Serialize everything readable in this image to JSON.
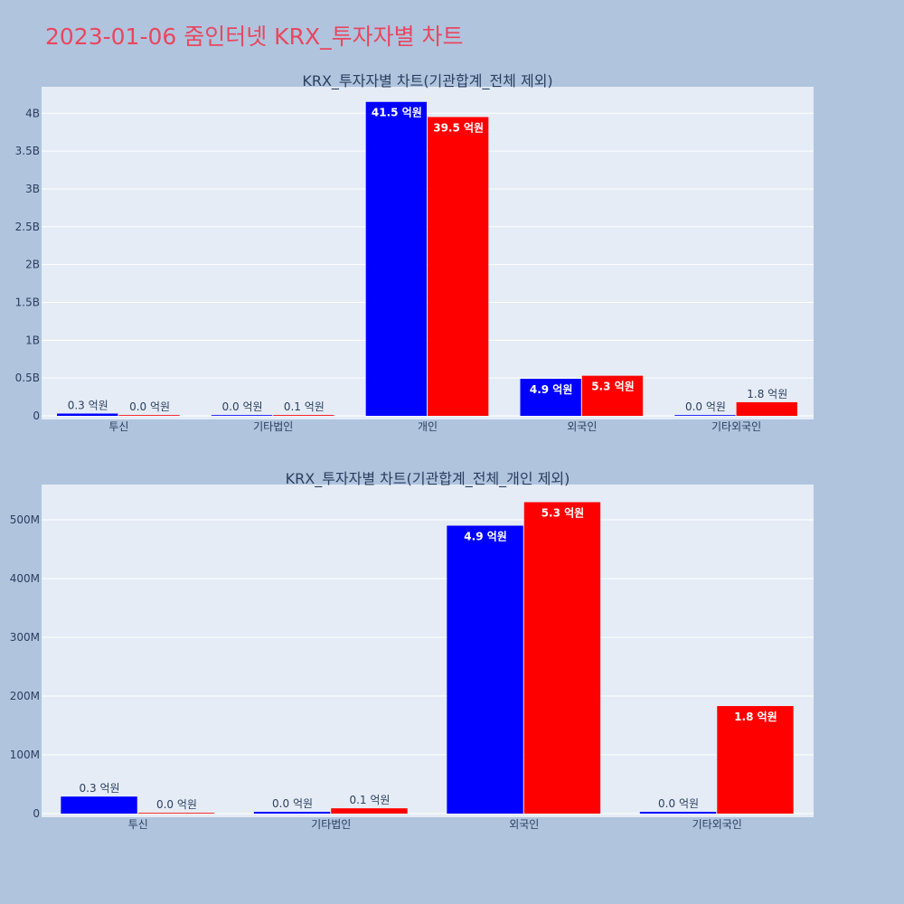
{
  "title": "2023-01-06 줌인터넷 KRX_투자자별 차트",
  "colors": {
    "page_bg": "#b0c4de",
    "plot_bg": "#e5ecf6",
    "title": "#e8475f",
    "text": "#2a3f5f",
    "buy": "#0000ff",
    "sell": "#ff0000"
  },
  "chart_data": [
    {
      "type": "bar",
      "title": "KRX_투자자별 차트(기관합계_전체 제외)",
      "categories": [
        "투신",
        "기타법인",
        "개인",
        "외국인",
        "기타외국인"
      ],
      "series": [
        {
          "color": "#0000ff",
          "values": [
            30000000,
            1000000,
            4150000000,
            490000000,
            2000000
          ],
          "labels": [
            "0.3 억원",
            "0.0 억원",
            "41.5 억원",
            "4.9 억원",
            "0.0 억원"
          ]
        },
        {
          "color": "#ff0000",
          "values": [
            0,
            10000000,
            3950000000,
            530000000,
            180000000
          ],
          "labels": [
            "0.0 억원",
            "0.1 억원",
            "39.5 억원",
            "5.3 억원",
            "1.8 억원"
          ]
        }
      ],
      "ylim": [
        0,
        4350000000
      ],
      "yticks": [
        0,
        500000000,
        1000000000,
        1500000000,
        2000000000,
        2500000000,
        3000000000,
        3500000000,
        4000000000
      ],
      "ytick_labels": [
        "0",
        "0.5B",
        "1B",
        "1.5B",
        "2B",
        "2.5B",
        "3B",
        "3.5B",
        "4B"
      ],
      "grid": true
    },
    {
      "type": "bar",
      "title": "KRX_투자자별 차트(기관합계_전체_개인 제외)",
      "categories": [
        "투신",
        "기타법인",
        "외국인",
        "기타외국인"
      ],
      "series": [
        {
          "color": "#0000ff",
          "values": [
            29000000,
            3000000,
            490000000,
            3000000
          ],
          "labels": [
            "0.3 억원",
            "0.0 억원",
            "4.9 억원",
            "0.0 억원"
          ]
        },
        {
          "color": "#ff0000",
          "values": [
            0,
            9000000,
            530000000,
            183000000
          ],
          "labels": [
            "0.0 억원",
            "0.1 억원",
            "5.3 억원",
            "1.8 억원"
          ]
        }
      ],
      "ylim": [
        0,
        560000000
      ],
      "yticks": [
        0,
        100000000,
        200000000,
        300000000,
        400000000,
        500000000
      ],
      "ytick_labels": [
        "0",
        "100M",
        "200M",
        "300M",
        "400M",
        "500M"
      ],
      "grid": true
    }
  ]
}
